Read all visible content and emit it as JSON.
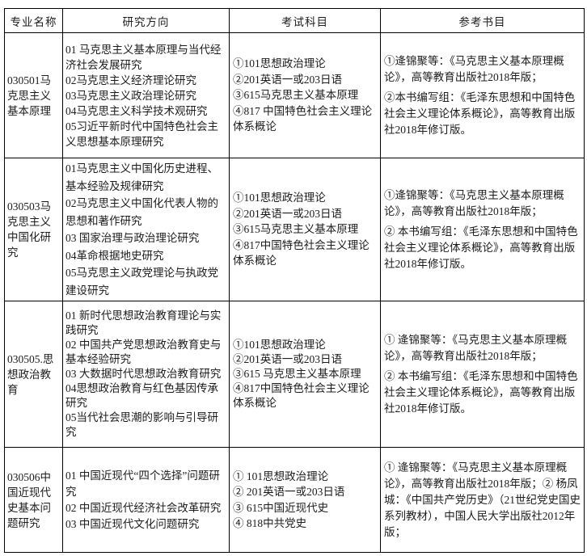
{
  "table": {
    "headers": [
      "专业名称",
      "研究方向",
      "考试科目",
      "参考书目"
    ],
    "rows": [
      {
        "major": "030501马克思主义基本原理",
        "directions": [
          "01 马克思主义基本原理与当代经济社会发展研究",
          "02马克思主义经济理论研究",
          "03马克思主义政治理论研究",
          "04马克思主义科学技术观研究",
          "05习近平新时代中国特色社会主义思想基本原理研究"
        ],
        "subjects": [
          "①101思想政治理论",
          "②201英语一或203日语",
          "③615马克思主义基本原理",
          "④817 中国特色社会主义理论体系概论"
        ],
        "references": [
          "①逄锦聚等：《马克思主义基本原理概论》，高等教育出版社2018年版；",
          "②本书编写组：《毛泽东思想和中国特色社会主义理论体系概论》，高等教育出版社2018年修订版。"
        ]
      },
      {
        "major": "030503马克思主义中国化研究",
        "directions": [
          "01马克思主义中国化历史进程、基本经验及规律研究",
          "02马克思主义中国化代表人物的思想和著作研究",
          "03 国家治理与政治理论研究",
          "04革命根据地史研究",
          "05马克思主义政党理论与执政党建设研究"
        ],
        "subjects": [
          "①101思想政治理论",
          "②201英语一或203日语",
          "③615马克思主义基本原理",
          "④817中国特色社会主义理论体系概论"
        ],
        "references": [
          "①逄锦聚等：《马克思主义基本原理概论》，高等教育出版社2018年版；",
          "② 本书编写组：《毛泽东思想和中国特色社会主义理论体系概论》，高等教育出版社2018年修订版。"
        ]
      },
      {
        "major": "030505.思想政治教育",
        "directions": [
          "01 新时代思想政治教育理论与实践研究",
          "02 中国共产党思想政治教育史与基本经验研究",
          "03 大数据时代思想政治教育研究",
          "04思想政治教育与红色基因传承研究",
          "05当代社会思潮的影响与引导研究"
        ],
        "subjects": [
          "①101思想政治理论",
          "②201英语一或203日语",
          "③615 马克思主义基本原理",
          "④817中国特色社会主义理论体系概论"
        ],
        "references": [
          "① 逄锦聚等：《马克思主义基本原理概论》，高等教育出版社2018年版；",
          "② 本书编写组：《毛泽东思想和中国特色社会主义理论体系概论》，高等教育出版社2018年修订版。"
        ]
      },
      {
        "major": "030506中国近现代史基本问题研究",
        "directions": [
          "01 中国近现代“四个选择”问题研究",
          "02 中国近现代经济社会改革研究",
          "03 中国近现代文化问题研究"
        ],
        "subjects": [
          "① 101思想政治理论",
          "② 201英语一或203日语",
          "③ 615中国近现代史",
          "④ 818中共党史"
        ],
        "references": [
          "① 逄锦聚等：《马克思主义基本原理概论》，高等教育出版社2018年版；② 杨凤城：《中国共产党历史》（21世纪党史国史系列教材），中国人民大学出版社2012年版；"
        ]
      }
    ]
  }
}
